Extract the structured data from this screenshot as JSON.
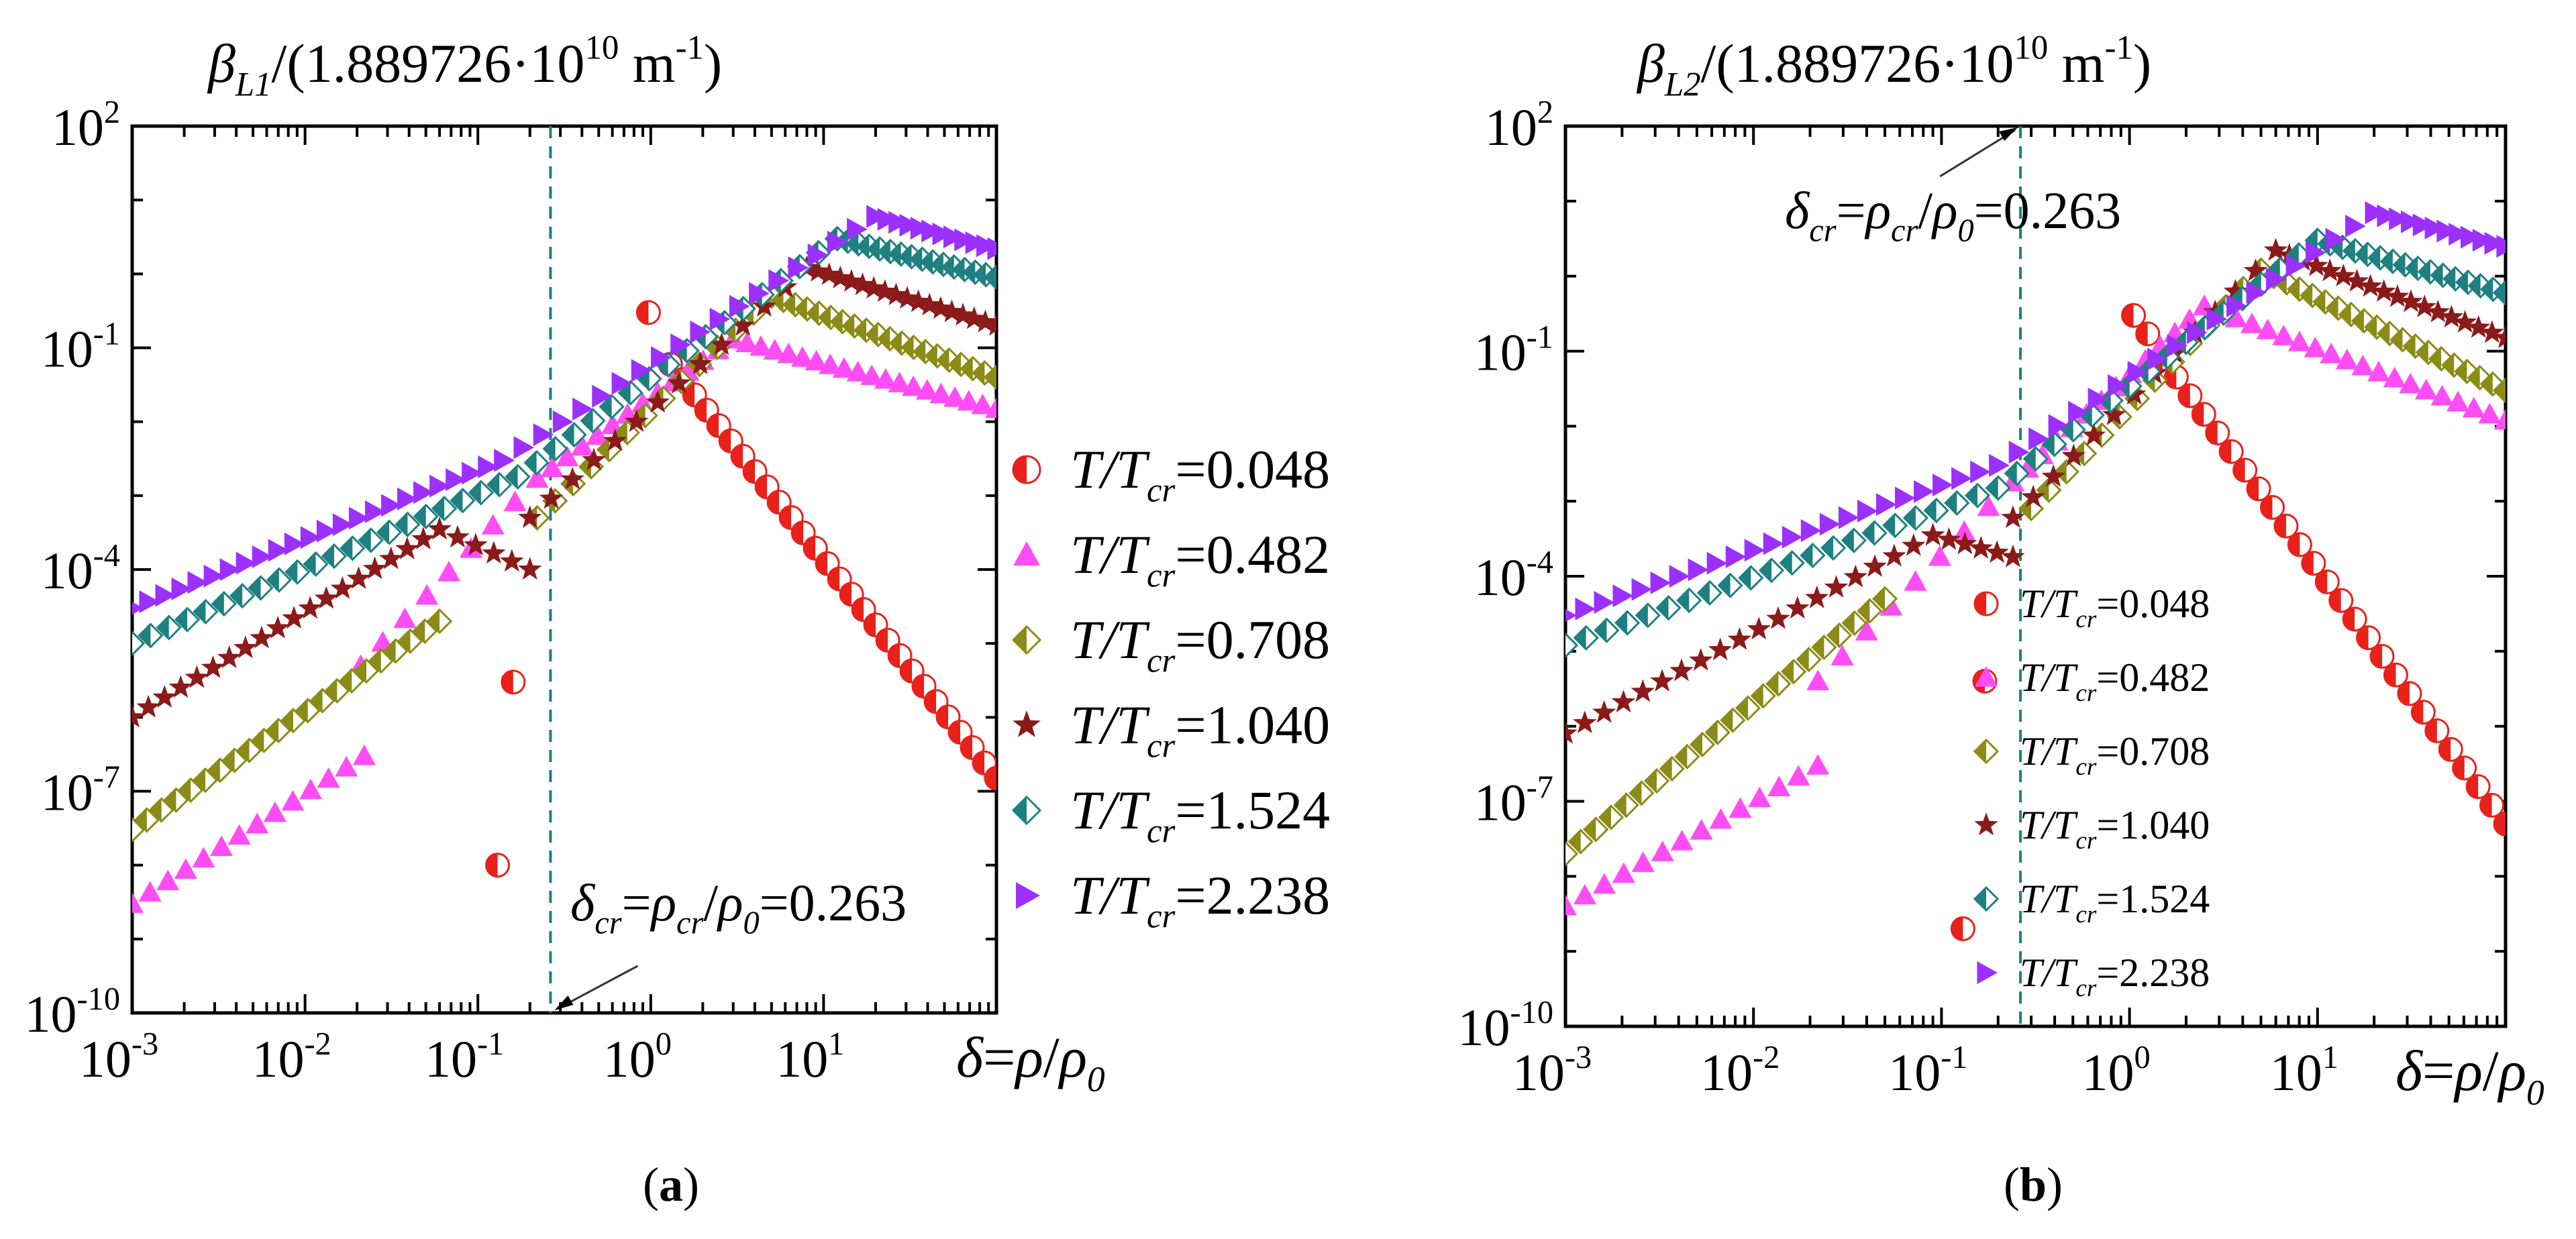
{
  "chart_data": [
    {
      "type": "scatter",
      "panel_label": "a",
      "title_symbol": "β",
      "title_subscript": "L1",
      "title_rest": "/(1.889726·10",
      "title_exp": "10",
      "title_unit": " m",
      "title_unit_exp": "-1",
      "title_close": ")",
      "xscale": "log",
      "yscale": "log",
      "xlim": [
        0.001,
        100
      ],
      "ylim": [
        1e-10,
        100
      ],
      "x_ticks": [
        {
          "base": "10",
          "exp": "-3"
        },
        {
          "base": "10",
          "exp": "-2"
        },
        {
          "base": "10",
          "exp": "-1"
        },
        {
          "base": "10",
          "exp": "0"
        },
        {
          "base": "10",
          "exp": "1"
        }
      ],
      "y_ticks": [
        {
          "base": "10",
          "exp": "-10"
        },
        {
          "base": "10",
          "exp": "-7"
        },
        {
          "base": "10",
          "exp": "-4"
        },
        {
          "base": "10",
          "exp": "-1"
        },
        {
          "base": "10",
          "exp": "2"
        }
      ],
      "xlabel": {
        "d": "δ",
        "eq": "=",
        "rho": "ρ",
        "slash": "/",
        "rho0": "ρ",
        "sub": "0"
      },
      "critical": {
        "x": 0.263,
        "text_main": "δ",
        "sub1": "cr",
        "eq1": "=",
        "rho": "ρ",
        "sub2": "cr",
        "slash": "/",
        "rho0": "ρ",
        "sub3": "0",
        "value": "=0.263"
      },
      "legend": {
        "position": "right-outside",
        "size": "large"
      },
      "series": [
        {
          "name": "T/Tcr=0.048",
          "label_T": "T/T",
          "label_sub": "cr",
          "label_val": "=0.048",
          "marker": "circle",
          "color": "#e8211b",
          "points": [
            [
              0.13,
              1e-08
            ],
            [
              0.16,
              3e-06
            ],
            [
              0.97,
              0.3
            ],
            [
              1.3,
              0.06
            ]
          ],
          "line": {
            "from": [
              1.3,
              0.06
            ],
            "to": [
              100,
              1.5e-07
            ],
            "n": 28
          }
        },
        {
          "name": "T/Tcr=0.482",
          "label_T": "T/T",
          "label_sub": "cr",
          "label_val": "=0.482",
          "marker": "triangle-up",
          "color": "#ff4df5",
          "segments": [
            {
              "from": [
                0.001,
                3e-09
              ],
              "to": [
                0.022,
                3e-07
              ],
              "n": 14
            },
            {
              "from": [
                0.021,
                5e-06
              ],
              "to": [
                0.22,
                0.0017
              ],
              "n": 9
            },
            {
              "from": [
                0.22,
                0.0017
              ],
              "to": [
                3,
                0.13
              ],
              "n": 14
            },
            {
              "from": [
                3,
                0.13
              ],
              "to": [
                100,
                0.015
              ],
              "n": 20
            }
          ]
        },
        {
          "name": "T/Tcr=0.708",
          "label_T": "T/T",
          "label_sub": "cr",
          "label_val": "=0.708",
          "marker": "diamond-half",
          "color": "#8b8b17",
          "segments": [
            {
              "from": [
                0.001,
                3e-08
              ],
              "to": [
                0.06,
                2e-05
              ],
              "n": 22
            },
            {
              "from": [
                0.22,
                0.0005
              ],
              "to": [
                5,
                0.5
              ],
              "n": 14
            },
            {
              "from": [
                5,
                0.5
              ],
              "to": [
                100,
                0.04
              ],
              "n": 20
            }
          ]
        },
        {
          "name": "T/Tcr=1.040",
          "label_T": "T/T",
          "label_sub": "cr",
          "label_val": "=1.040",
          "marker": "star",
          "color": "#8b1a1a",
          "segments": [
            {
              "from": [
                0.001,
                1e-06
              ],
              "to": [
                0.06,
                0.00035
              ],
              "n": 20
            },
            {
              "from": [
                0.06,
                0.00035
              ],
              "to": [
                0.2,
                0.0001
              ],
              "n": 6
            },
            {
              "from": [
                0.2,
                0.0005
              ],
              "to": [
                8,
                1.2
              ],
              "n": 14
            },
            {
              "from": [
                8,
                1.2
              ],
              "to": [
                100,
                0.2
              ],
              "n": 18
            }
          ]
        },
        {
          "name": "T/Tcr=1.524",
          "label_T": "T/T",
          "label_sub": "cr",
          "label_val": "=1.524",
          "marker": "diamond-split",
          "color": "#1e8080",
          "segments": [
            {
              "from": [
                0.001,
                1e-05
              ],
              "to": [
                0.17,
                0.0018
              ],
              "n": 22
            },
            {
              "from": [
                0.17,
                0.0018
              ],
              "to": [
                12,
                3
              ],
              "n": 18
            },
            {
              "from": [
                12,
                3
              ],
              "to": [
                100,
                0.9
              ],
              "n": 16
            }
          ]
        },
        {
          "name": "T/Tcr=2.238",
          "label_T": "T/T",
          "label_sub": "cr",
          "label_val": "=2.238",
          "marker": "triangle-right",
          "color": "#9b30ff",
          "segments": [
            {
              "from": [
                0.001,
                3e-05
              ],
              "to": [
                0.14,
                0.003
              ],
              "n": 24
            },
            {
              "from": [
                0.14,
                0.003
              ],
              "to": [
                20,
                6
              ],
              "n": 20
            },
            {
              "from": [
                20,
                6
              ],
              "to": [
                100,
                2.2
              ],
              "n": 12
            }
          ]
        }
      ]
    },
    {
      "type": "scatter",
      "panel_label": "b",
      "title_symbol": "β",
      "title_subscript": "L2",
      "title_rest": "/(1.889726·10",
      "title_exp": "10",
      "title_unit": " m",
      "title_unit_exp": "-1",
      "title_close": ")",
      "xscale": "log",
      "yscale": "log",
      "xlim": [
        0.001,
        100
      ],
      "ylim": [
        1e-10,
        100
      ],
      "x_ticks": [
        {
          "base": "10",
          "exp": "-3"
        },
        {
          "base": "10",
          "exp": "-2"
        },
        {
          "base": "10",
          "exp": "-1"
        },
        {
          "base": "10",
          "exp": "0"
        },
        {
          "base": "10",
          "exp": "1"
        }
      ],
      "y_ticks": [
        {
          "base": "10",
          "exp": "-10"
        },
        {
          "base": "10",
          "exp": "-7"
        },
        {
          "base": "10",
          "exp": "-4"
        },
        {
          "base": "10",
          "exp": "-1"
        },
        {
          "base": "10",
          "exp": "2"
        }
      ],
      "xlabel": {
        "d": "δ",
        "eq": "=",
        "rho": "ρ",
        "slash": "/",
        "rho0": "ρ",
        "sub": "0"
      },
      "critical": {
        "x": 0.263,
        "text_main": "δ",
        "sub1": "cr",
        "eq1": "=",
        "rho": "ρ",
        "sub2": "cr",
        "slash": "/",
        "rho0": "ρ",
        "sub3": "0",
        "value": "=0.263"
      },
      "legend": {
        "position": "inside-lower-center",
        "size": "small"
      },
      "series": [
        {
          "name": "T/Tcr=0.048",
          "label_T": "T/T",
          "label_sub": "cr",
          "label_val": "=0.048",
          "marker": "circle",
          "color": "#e8211b",
          "points": [
            [
              0.13,
              2e-09
            ],
            [
              0.17,
              4e-06
            ],
            [
              1.05,
              0.3
            ],
            [
              1.25,
              0.17
            ]
          ],
          "line": {
            "from": [
              1.5,
              0.08
            ],
            "to": [
              100,
              5e-08
            ],
            "n": 26
          }
        },
        {
          "name": "T/Tcr=0.482",
          "label_T": "T/T",
          "label_sub": "cr",
          "label_val": "=0.482",
          "marker": "triangle-up",
          "color": "#ff4df5",
          "segments": [
            {
              "from": [
                0.001,
                4e-09
              ],
              "to": [
                0.022,
                3e-07
              ],
              "n": 14
            },
            {
              "from": [
                0.022,
                4e-06
              ],
              "to": [
                0.24,
                0.0018
              ],
              "n": 9
            },
            {
              "from": [
                0.24,
                0.0018
              ],
              "to": [
                2.5,
                0.4
              ],
              "n": 14
            },
            {
              "from": [
                2.5,
                0.4
              ],
              "to": [
                100,
                0.012
              ],
              "n": 20
            }
          ]
        },
        {
          "name": "T/Tcr=0.708",
          "label_T": "T/T",
          "label_sub": "cr",
          "label_val": "=0.708",
          "marker": "diamond-half",
          "color": "#8b8b17",
          "segments": [
            {
              "from": [
                0.001,
                2e-08
              ],
              "to": [
                0.05,
                5e-05
              ],
              "n": 22
            },
            {
              "from": [
                0.3,
                0.0008
              ],
              "to": [
                5,
                1.2
              ],
              "n": 14
            },
            {
              "from": [
                5,
                1.2
              ],
              "to": [
                100,
                0.03
              ],
              "n": 20
            }
          ]
        },
        {
          "name": "T/Tcr=1.040",
          "label_T": "T/T",
          "label_sub": "cr",
          "label_val": "=1.040",
          "marker": "star",
          "color": "#8b1a1a",
          "segments": [
            {
              "from": [
                0.001,
                8e-07
              ],
              "to": [
                0.09,
                0.00035
              ],
              "n": 20
            },
            {
              "from": [
                0.09,
                0.00035
              ],
              "to": [
                0.24,
                0.00018
              ],
              "n": 6
            },
            {
              "from": [
                0.24,
                0.0006
              ],
              "to": [
                6,
                2.2
              ],
              "n": 14
            },
            {
              "from": [
                6,
                2.2
              ],
              "to": [
                100,
                0.15
              ],
              "n": 18
            }
          ]
        },
        {
          "name": "T/Tcr=1.524",
          "label_T": "T/T",
          "label_sub": "cr",
          "label_val": "=1.524",
          "marker": "diamond-split",
          "color": "#1e8080",
          "segments": [
            {
              "from": [
                0.001,
                1.2e-05
              ],
              "to": [
                0.2,
                0.0015
              ],
              "n": 22
            },
            {
              "from": [
                0.2,
                0.0015
              ],
              "to": [
                10,
                3
              ],
              "n": 18
            },
            {
              "from": [
                10,
                3
              ],
              "to": [
                100,
                0.6
              ],
              "n": 16
            }
          ]
        },
        {
          "name": "T/Tcr=2.238",
          "label_T": "T/T",
          "label_sub": "cr",
          "label_val": "=2.238",
          "marker": "triangle-right",
          "color": "#9b30ff",
          "segments": [
            {
              "from": [
                0.001,
                3e-05
              ],
              "to": [
                0.2,
                0.003
              ],
              "n": 24
            },
            {
              "from": [
                0.2,
                0.003
              ],
              "to": [
                20,
                7
              ],
              "n": 20
            },
            {
              "from": [
                20,
                7
              ],
              "to": [
                100,
                2.5
              ],
              "n": 12
            }
          ]
        }
      ]
    }
  ]
}
